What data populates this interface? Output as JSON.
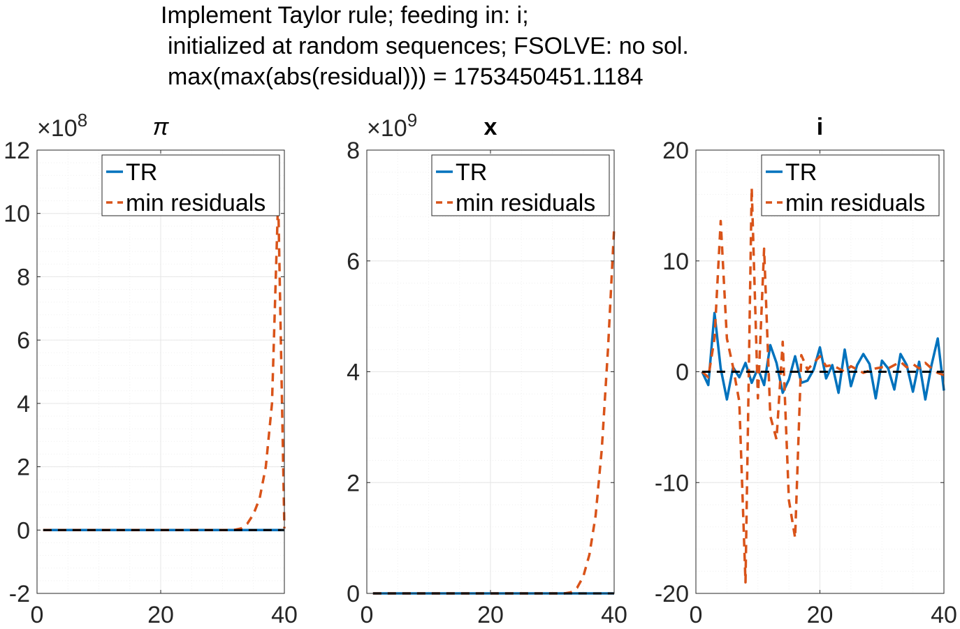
{
  "figure_title": {
    "line1": "Implement Taylor rule; feeding in: i;",
    "line2": "initialized at random sequences; FSOLVE: no sol.",
    "line3": "max(max(abs(residual))) = 1753450451.1184"
  },
  "colors": {
    "TR": "#0072BD",
    "min_residuals": "#D95319",
    "zero_line": "#000000",
    "grid": "#e6e6e6"
  },
  "chart_data": [
    {
      "type": "line",
      "title": "π",
      "exponent_label": "×10",
      "exponent_power": "8",
      "xlim": [
        0,
        40
      ],
      "ylim": [
        -2,
        12
      ],
      "xticks": [
        0,
        20,
        40
      ],
      "yticks": [
        -2,
        0,
        2,
        4,
        6,
        8,
        10,
        12
      ],
      "grid": true,
      "legend_position": "top-right",
      "x": [
        1,
        2,
        3,
        4,
        5,
        6,
        7,
        8,
        9,
        10,
        11,
        12,
        13,
        14,
        15,
        16,
        17,
        18,
        19,
        20,
        21,
        22,
        23,
        24,
        25,
        26,
        27,
        28,
        29,
        30,
        31,
        32,
        33,
        34,
        35,
        36,
        37,
        38,
        39,
        40
      ],
      "series": [
        {
          "name": "TR",
          "style": "solid",
          "values": [
            0,
            0,
            0,
            0,
            0,
            0,
            0,
            0,
            0,
            0,
            0,
            0,
            0,
            0,
            0,
            0,
            0,
            0,
            0,
            0,
            0,
            0,
            0,
            0,
            0,
            0,
            0,
            0,
            0,
            0,
            0,
            0,
            0,
            0,
            0,
            0,
            0,
            0,
            0,
            0
          ]
        },
        {
          "name": "min residuals",
          "style": "dashed",
          "values": [
            0,
            0,
            0,
            0,
            0,
            0,
            0,
            0,
            0,
            0,
            0,
            0,
            0,
            0,
            0,
            0,
            0,
            0,
            0,
            0,
            0,
            0,
            0,
            0,
            0,
            0,
            0,
            0,
            0,
            0,
            0,
            0.01,
            0.05,
            0.2,
            0.5,
            1.0,
            2.0,
            4.0,
            10.5,
            0.05
          ]
        },
        {
          "name": "",
          "style": "zero",
          "values": [
            0,
            0,
            0,
            0,
            0,
            0,
            0,
            0,
            0,
            0,
            0,
            0,
            0,
            0,
            0,
            0,
            0,
            0,
            0,
            0,
            0,
            0,
            0,
            0,
            0,
            0,
            0,
            0,
            0,
            0,
            0,
            0,
            0,
            0,
            0,
            0,
            0,
            0,
            0,
            0
          ]
        }
      ]
    },
    {
      "type": "line",
      "title": "x",
      "exponent_label": "×10",
      "exponent_power": "9",
      "xlim": [
        0,
        40
      ],
      "ylim": [
        0,
        8
      ],
      "xticks": [
        0,
        20,
        40
      ],
      "yticks": [
        0,
        2,
        4,
        6,
        8
      ],
      "grid": true,
      "legend_position": "top-right",
      "x": [
        1,
        2,
        3,
        4,
        5,
        6,
        7,
        8,
        9,
        10,
        11,
        12,
        13,
        14,
        15,
        16,
        17,
        18,
        19,
        20,
        21,
        22,
        23,
        24,
        25,
        26,
        27,
        28,
        29,
        30,
        31,
        32,
        33,
        34,
        35,
        36,
        37,
        38,
        39,
        40
      ],
      "series": [
        {
          "name": "TR",
          "style": "solid",
          "values": [
            0,
            0,
            0,
            0,
            0,
            0,
            0,
            0,
            0,
            0,
            0,
            0,
            0,
            0,
            0,
            0,
            0,
            0,
            0,
            0,
            0,
            0,
            0,
            0,
            0,
            0,
            0,
            0,
            0,
            0,
            0,
            0,
            0,
            0,
            0,
            0,
            0,
            0,
            0,
            0
          ]
        },
        {
          "name": "min residuals",
          "style": "dashed",
          "values": [
            0,
            0,
            0,
            0,
            0,
            0,
            0,
            0,
            0,
            0,
            0,
            0,
            0,
            0,
            0,
            0,
            0,
            0,
            0,
            0,
            0,
            0,
            0,
            0,
            0,
            0,
            0,
            0,
            0,
            0,
            0,
            0,
            0.02,
            0.1,
            0.3,
            0.7,
            1.4,
            2.6,
            4.4,
            6.6
          ]
        },
        {
          "name": "",
          "style": "zero",
          "values": [
            0,
            0,
            0,
            0,
            0,
            0,
            0,
            0,
            0,
            0,
            0,
            0,
            0,
            0,
            0,
            0,
            0,
            0,
            0,
            0,
            0,
            0,
            0,
            0,
            0,
            0,
            0,
            0,
            0,
            0,
            0,
            0,
            0,
            0,
            0,
            0,
            0,
            0,
            0,
            0
          ]
        }
      ]
    },
    {
      "type": "line",
      "title": "i",
      "exponent_label": "",
      "exponent_power": "",
      "xlim": [
        0,
        40
      ],
      "ylim": [
        -20,
        20
      ],
      "xticks": [
        0,
        20,
        40
      ],
      "yticks": [
        -20,
        -10,
        0,
        10,
        20
      ],
      "grid": true,
      "legend_position": "top-right",
      "x": [
        1,
        2,
        3,
        4,
        5,
        6,
        7,
        8,
        9,
        10,
        11,
        12,
        13,
        14,
        15,
        16,
        17,
        18,
        19,
        20,
        21,
        22,
        23,
        24,
        25,
        26,
        27,
        28,
        29,
        30,
        31,
        32,
        33,
        34,
        35,
        36,
        37,
        38,
        39,
        40
      ],
      "series": [
        {
          "name": "TR",
          "style": "solid",
          "values": [
            0,
            -1.2,
            5.3,
            0.3,
            -2.5,
            0.4,
            -0.5,
            0.8,
            -1.0,
            0.3,
            -1.2,
            2.4,
            0.8,
            -1.9,
            -0.7,
            1.4,
            -1.0,
            -0.8,
            0.2,
            2.2,
            -0.6,
            0.6,
            -1.9,
            2.0,
            -1.3,
            0.6,
            1.6,
            0.7,
            -2.4,
            1.0,
            0.3,
            -1.6,
            1.6,
            0.6,
            -1.8,
            0.9,
            -2.5,
            0.6,
            3.0,
            -1.7
          ]
        },
        {
          "name": "min residuals",
          "style": "dashed",
          "values": [
            0,
            -0.5,
            3.0,
            13.6,
            3.0,
            0.4,
            -2.7,
            -19.0,
            16.6,
            -2.4,
            11.1,
            -4.0,
            -6.1,
            2.7,
            -11.6,
            -15.0,
            1.5,
            0.2,
            0.8,
            1.4,
            0.5,
            0.6,
            0.3,
            0.0,
            0.5,
            0.2,
            -0.1,
            0.1,
            0.3,
            0.4,
            0.3,
            0.6,
            0.9,
            0.4,
            0.7,
            0.3,
            0.8,
            0.3,
            -0.1,
            -0.3
          ]
        },
        {
          "name": "",
          "style": "zero",
          "values": [
            0,
            0,
            0,
            0,
            0,
            0,
            0,
            0,
            0,
            0,
            0,
            0,
            0,
            0,
            0,
            0,
            0,
            0,
            0,
            0,
            0,
            0,
            0,
            0,
            0,
            0,
            0,
            0,
            0,
            0,
            0,
            0,
            0,
            0,
            0,
            0,
            0,
            0,
            0,
            0
          ]
        }
      ]
    }
  ]
}
